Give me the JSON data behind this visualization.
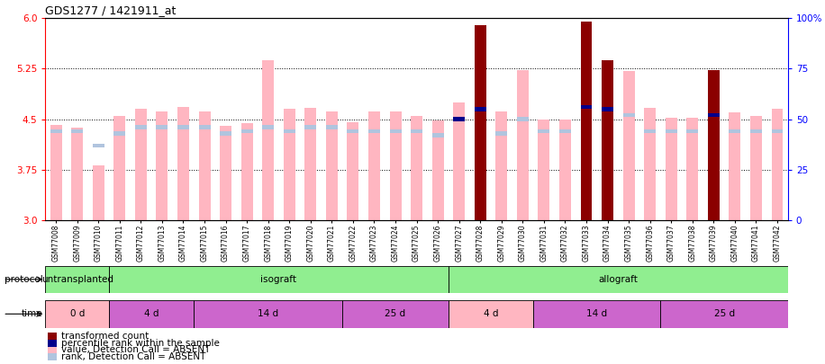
{
  "title": "GDS1277 / 1421911_at",
  "samples": [
    "GSM77008",
    "GSM77009",
    "GSM77010",
    "GSM77011",
    "GSM77012",
    "GSM77013",
    "GSM77014",
    "GSM77015",
    "GSM77016",
    "GSM77017",
    "GSM77018",
    "GSM77019",
    "GSM77020",
    "GSM77021",
    "GSM77022",
    "GSM77023",
    "GSM77024",
    "GSM77025",
    "GSM77026",
    "GSM77027",
    "GSM77028",
    "GSM77029",
    "GSM77030",
    "GSM77031",
    "GSM77032",
    "GSM77033",
    "GSM77034",
    "GSM77035",
    "GSM77036",
    "GSM77037",
    "GSM77038",
    "GSM77039",
    "GSM77040",
    "GSM77041",
    "GSM77042"
  ],
  "transformed_count": [
    4.42,
    4.38,
    3.82,
    4.55,
    4.65,
    4.62,
    4.68,
    4.62,
    4.4,
    4.44,
    5.37,
    4.65,
    4.67,
    4.62,
    4.45,
    4.62,
    4.62,
    4.55,
    4.48,
    4.75,
    5.9,
    4.62,
    5.23,
    4.5,
    4.5,
    5.95,
    5.38,
    5.22,
    4.67,
    4.52,
    4.52,
    5.23,
    4.6,
    4.55,
    4.65
  ],
  "percentile_rank": [
    44,
    44,
    37,
    43,
    46,
    46,
    46,
    46,
    43,
    44,
    46,
    44,
    46,
    46,
    44,
    44,
    44,
    44,
    42,
    50,
    55,
    43,
    50,
    44,
    44,
    56,
    55,
    52,
    44,
    44,
    44,
    52,
    44,
    44,
    44
  ],
  "val_absent": [
    true,
    true,
    true,
    true,
    true,
    true,
    true,
    true,
    true,
    true,
    true,
    true,
    true,
    true,
    true,
    true,
    true,
    true,
    true,
    true,
    false,
    true,
    true,
    true,
    true,
    false,
    false,
    true,
    true,
    true,
    true,
    false,
    true,
    true,
    true
  ],
  "rank_absent": [
    true,
    true,
    true,
    true,
    true,
    true,
    true,
    true,
    true,
    true,
    true,
    true,
    true,
    true,
    true,
    true,
    true,
    true,
    true,
    false,
    false,
    true,
    true,
    true,
    true,
    false,
    false,
    true,
    true,
    true,
    true,
    false,
    true,
    true,
    true
  ],
  "ylim_left": [
    3.0,
    6.0
  ],
  "ylim_right": [
    0,
    100
  ],
  "yticks_left": [
    3.0,
    3.75,
    4.5,
    5.25,
    6.0
  ],
  "yticks_right": [
    0,
    25,
    50,
    75,
    100
  ],
  "yticklabels_right": [
    "0",
    "25",
    "50",
    "75",
    "100%"
  ],
  "bar_base": 3.0,
  "bar_width": 0.55,
  "absent_val_color": "#ffb6c1",
  "present_val_color": "#8b0000",
  "absent_rank_color": "#b0c4de",
  "present_rank_color": "#00008b",
  "protocol_groups": [
    {
      "label": "untransplanted",
      "start": 0,
      "end": 2,
      "color": "#90ee90"
    },
    {
      "label": "isograft",
      "start": 3,
      "end": 18,
      "color": "#90ee90"
    },
    {
      "label": "allograft",
      "start": 19,
      "end": 34,
      "color": "#90ee90"
    }
  ],
  "time_groups": [
    {
      "label": "0 d",
      "start": 0,
      "end": 2,
      "color": "#ffb6c1"
    },
    {
      "label": "4 d",
      "start": 3,
      "end": 6,
      "color": "#cc66cc"
    },
    {
      "label": "14 d",
      "start": 7,
      "end": 13,
      "color": "#cc66cc"
    },
    {
      "label": "25 d",
      "start": 14,
      "end": 18,
      "color": "#cc66cc"
    },
    {
      "label": "4 d",
      "start": 19,
      "end": 22,
      "color": "#ffb6c1"
    },
    {
      "label": "14 d",
      "start": 23,
      "end": 28,
      "color": "#cc66cc"
    },
    {
      "label": "25 d",
      "start": 29,
      "end": 34,
      "color": "#cc66cc"
    }
  ],
  "legend_items": [
    {
      "color": "#8b0000",
      "label": "transformed count"
    },
    {
      "color": "#00008b",
      "label": "percentile rank within the sample"
    },
    {
      "color": "#ffb6c1",
      "label": "value, Detection Call = ABSENT"
    },
    {
      "color": "#b0c4de",
      "label": "rank, Detection Call = ABSENT"
    }
  ]
}
